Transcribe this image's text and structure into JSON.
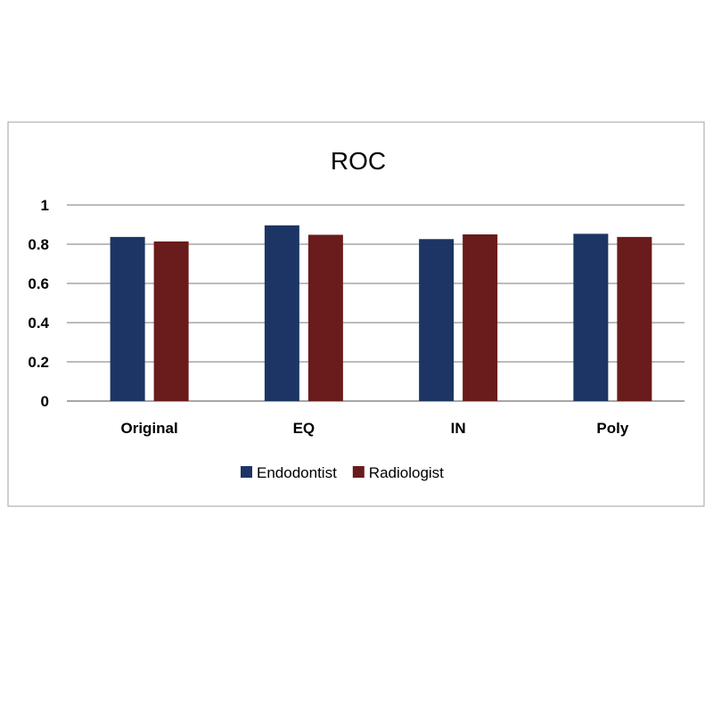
{
  "chart_data": {
    "type": "bar",
    "title": "ROC",
    "categories": [
      "Original",
      "EQ",
      "IN",
      "Poly"
    ],
    "series": [
      {
        "name": "Endodontist",
        "color": "#1c3564",
        "values": [
          0.837,
          0.896,
          0.826,
          0.853
        ]
      },
      {
        "name": "Radiologist",
        "color": "#6a1b1b",
        "values": [
          0.814,
          0.848,
          0.85,
          0.837
        ]
      }
    ],
    "ylim": [
      0,
      1
    ],
    "yticks": [
      "0",
      "0.2",
      "0.4",
      "0.6",
      "0.8",
      "1"
    ],
    "grid": true,
    "legend": "bottom"
  }
}
